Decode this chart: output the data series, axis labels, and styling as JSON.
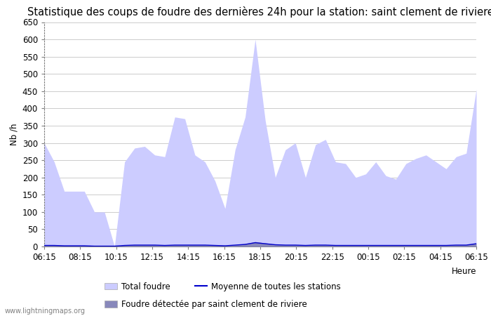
{
  "title": "Statistique des coups de foudre des dernières 24h pour la station: saint clement de riviere",
  "ylabel": "Nb /h",
  "xlabel": "Heure",
  "x_labels": [
    "06:15",
    "08:15",
    "10:15",
    "12:15",
    "14:15",
    "16:15",
    "18:15",
    "20:15",
    "22:15",
    "00:15",
    "02:15",
    "04:15",
    "06:15"
  ],
  "ylim": [
    0,
    650
  ],
  "yticks": [
    0,
    50,
    100,
    150,
    200,
    250,
    300,
    350,
    400,
    450,
    500,
    550,
    600,
    650
  ],
  "total_foudre": [
    300,
    245,
    160,
    160,
    160,
    100,
    100,
    0,
    245,
    285,
    290,
    265,
    260,
    375,
    370,
    265,
    245,
    190,
    110,
    280,
    375,
    600,
    365,
    200,
    280,
    300,
    200,
    295,
    310,
    245,
    240,
    200,
    210,
    245,
    205,
    195,
    240,
    255,
    265,
    245,
    225,
    260,
    270,
    455
  ],
  "foudre_detectee": [
    5,
    4,
    3,
    3,
    3,
    2,
    2,
    1,
    4,
    5,
    5,
    5,
    4,
    5,
    5,
    5,
    5,
    4,
    3,
    5,
    8,
    14,
    10,
    6,
    5,
    5,
    4,
    5,
    5,
    4,
    4,
    4,
    4,
    4,
    4,
    4,
    4,
    4,
    4,
    4,
    4,
    5,
    5,
    10
  ],
  "moyenne_stations": [
    3,
    3,
    2,
    2,
    2,
    1,
    1,
    1,
    3,
    4,
    4,
    4,
    3,
    4,
    4,
    4,
    4,
    3,
    2,
    4,
    6,
    11,
    8,
    5,
    4,
    4,
    3,
    4,
    4,
    3,
    3,
    3,
    3,
    3,
    3,
    3,
    3,
    3,
    3,
    3,
    3,
    4,
    4,
    8
  ],
  "total_foudre_color": "#ccccff",
  "foudre_detectee_color": "#8888bb",
  "moyenne_color": "#0000cc",
  "background_color": "#ffffff",
  "grid_color": "#cccccc",
  "watermark": "www.lightningmaps.org",
  "title_fontsize": 10.5,
  "axis_fontsize": 8.5,
  "legend_fontsize": 8.5,
  "legend1_label": "Total foudre",
  "legend2_label": "Moyenne de toutes les stations",
  "legend3_label": "Foudre détectée par saint clement de riviere"
}
